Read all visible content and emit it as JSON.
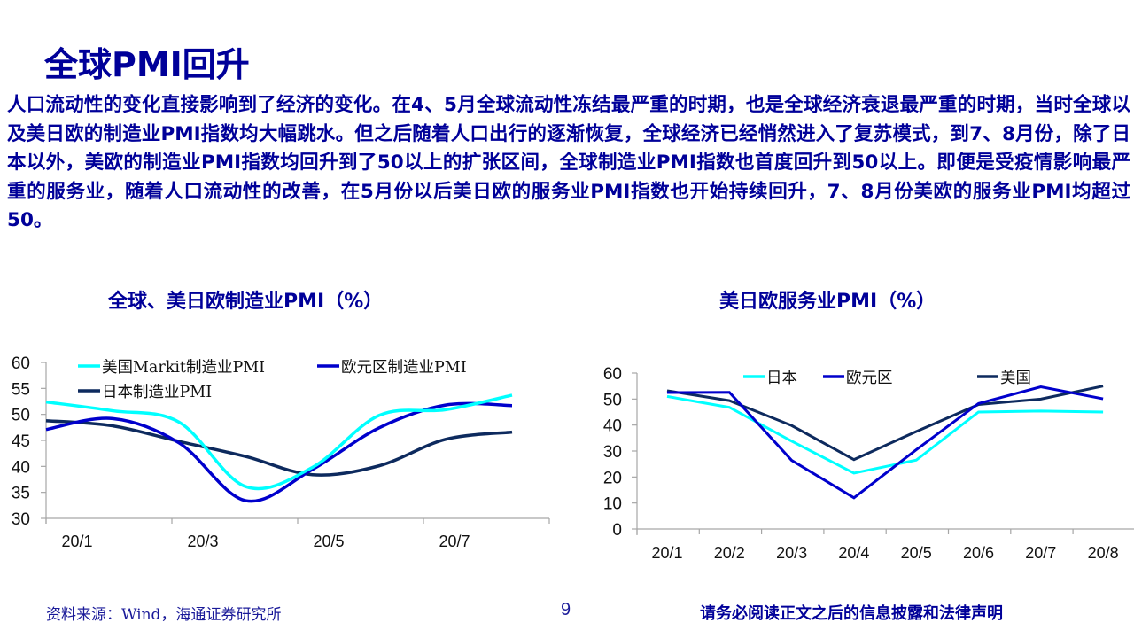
{
  "slide": {
    "title": "全球PMI回升",
    "body": "人口流动性的变化直接影响到了经济的变化。在4、5月全球流动性冻结最严重的时期，也是全球经济衰退最严重的时期，当时全球以及美日欧的制造业PMI指数均大幅跳水。但之后随着人口出行的逐渐恢复，全球经济已经悄然进入了复苏模式，到7、8月份，除了日本以外，美欧的制造业PMI指数均回升到了50以上的扩张区间，全球制造业PMI指数也首度回升到50以上。即便是受疫情影响最严重的服务业，随着人口流动性的改善，在5月份以后美日欧的服务业PMI指数也开始持续回升，7、8月份美欧的服务业PMI均超过50。",
    "page_number": "9",
    "source": "资料来源：Wind，海通证券研究所",
    "legal": "请务必阅读正文之后的信息披露和法律声明"
  },
  "colors": {
    "title": "#000099",
    "cyan": "#00FFFF",
    "blue": "#0000CC",
    "navy": "#0D2A5E",
    "axis": "#A6A6A6"
  },
  "chart_data": [
    {
      "type": "line",
      "title": "全球、美日欧制造业PMI（%）",
      "xlabel": "",
      "ylabel": "",
      "ylim": [
        30,
        60
      ],
      "yticks": [
        60,
        55,
        50,
        45,
        40,
        35,
        30
      ],
      "tick_labels": [
        "20/1",
        "20/3",
        "20/5",
        "20/7"
      ],
      "x": [
        "20/1",
        "20/2",
        "20/3",
        "20/4",
        "20/5",
        "20/6",
        "20/7",
        "20/8"
      ],
      "grid": false,
      "legend_position": "top",
      "series": [
        {
          "name": "美国Markit制造业PMI",
          "color": "#00FFFF",
          "values": [
            52.4,
            50.7,
            48.5,
            36.1,
            39.8,
            49.8,
            50.9,
            53.7
          ]
        },
        {
          "name": "欧元区制造业PMI",
          "color": "#0000CC",
          "values": [
            47.1,
            49.2,
            44.5,
            33.4,
            39.4,
            47.4,
            51.8,
            51.7
          ]
        },
        {
          "name": "日本制造业PMI",
          "color": "#0D2A5E",
          "values": [
            48.8,
            47.8,
            44.8,
            41.9,
            38.4,
            40.1,
            45.2,
            46.6
          ]
        }
      ]
    },
    {
      "type": "line",
      "title": "美日欧服务业PMI（%）",
      "xlabel": "",
      "ylabel": "",
      "ylim": [
        0,
        60
      ],
      "yticks": [
        60,
        50,
        40,
        30,
        20,
        10,
        0
      ],
      "x": [
        "20/1",
        "20/2",
        "20/3",
        "20/4",
        "20/5",
        "20/6",
        "20/7",
        "20/8"
      ],
      "grid": false,
      "legend_position": "top",
      "series": [
        {
          "name": "日本",
          "color": "#00FFFF",
          "values": [
            51.0,
            46.8,
            33.8,
            21.5,
            26.5,
            45.0,
            45.4,
            45.0
          ]
        },
        {
          "name": "欧元区",
          "color": "#0000CC",
          "values": [
            52.5,
            52.6,
            26.4,
            12.0,
            30.5,
            48.3,
            54.7,
            50.1
          ]
        },
        {
          "name": "美国",
          "color": "#0D2A5E",
          "values": [
            53.2,
            49.4,
            39.8,
            26.7,
            37.5,
            47.9,
            50.0,
            55.0
          ]
        }
      ]
    }
  ]
}
